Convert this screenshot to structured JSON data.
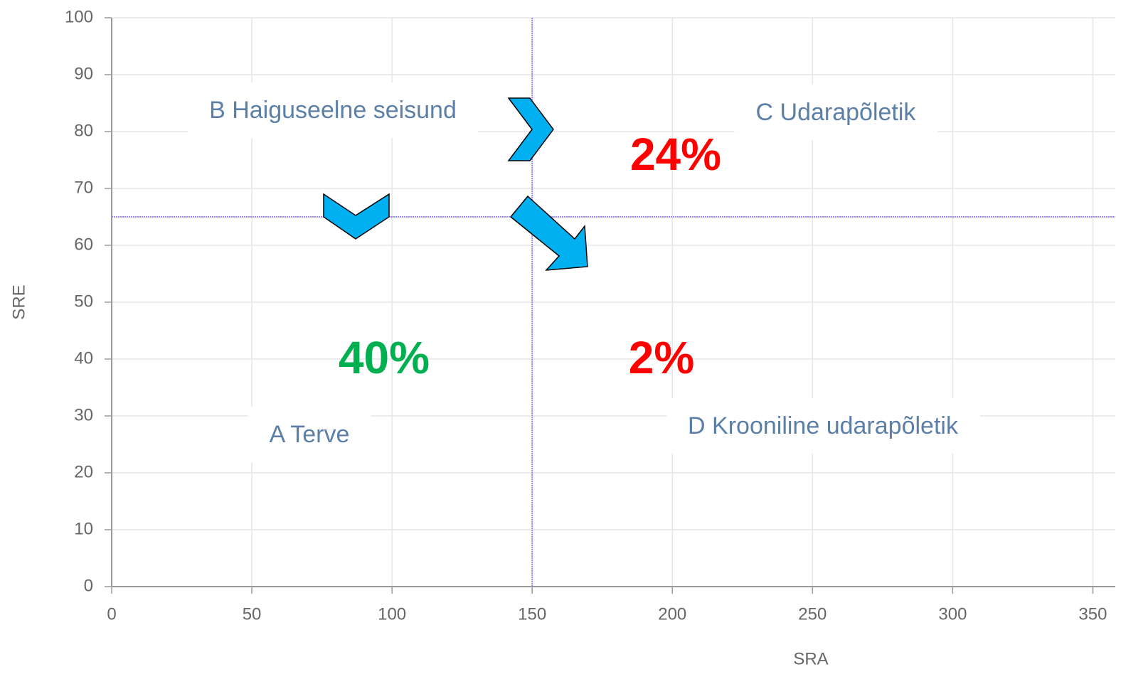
{
  "chart_data": {
    "type": "quadrant",
    "x_label": "SRA",
    "y_label": "SRE",
    "xlim": [
      0,
      358
    ],
    "xticks": [
      0,
      50,
      100,
      150,
      200,
      250,
      300,
      350
    ],
    "ylim": [
      0,
      100
    ],
    "yticks": [
      0,
      10,
      20,
      30,
      40,
      50,
      60,
      70,
      80,
      90,
      100
    ],
    "grid": true,
    "thresholds": {
      "x": 150,
      "y": 65,
      "color": "#9b8cf5"
    },
    "quadrant_labels": [
      "B Haiguseelne seisund",
      "C Udarapõletik",
      "A Terve",
      "D Krooniline udarapõletik"
    ],
    "quadrant_label_color": "#5b7fa6",
    "shares": {
      "values": [
        24,
        40,
        2
      ],
      "value_labels": [
        "24%",
        "40%",
        "2%"
      ],
      "colors": [
        "#ff0000",
        "#00b050",
        "#ff0000"
      ]
    }
  }
}
